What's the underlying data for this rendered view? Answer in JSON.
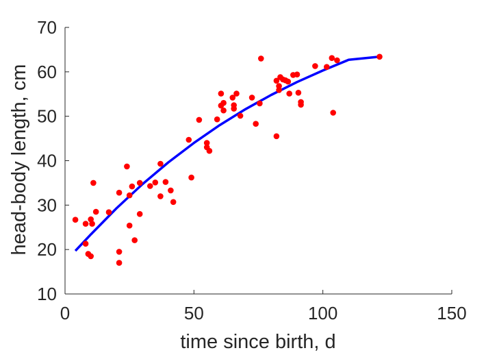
{
  "chart_data": {
    "type": "scatter",
    "xlabel": "time since birth, d",
    "ylabel": "head-body length, cm",
    "xlim": [
      0,
      150
    ],
    "ylim": [
      10,
      70
    ],
    "xticks": [
      0,
      50,
      100,
      150
    ],
    "yticks": [
      10,
      20,
      30,
      40,
      50,
      60,
      70
    ],
    "grid": false,
    "series": [
      {
        "kind": "points",
        "color": "#ff0000",
        "points": [
          [
            4,
            26.7
          ],
          [
            8,
            25.8
          ],
          [
            8,
            21.3
          ],
          [
            9,
            19
          ],
          [
            10,
            18.5
          ],
          [
            10,
            26.8
          ],
          [
            10.5,
            25.8
          ],
          [
            11,
            35
          ],
          [
            12,
            28.5
          ],
          [
            17,
            28.4
          ],
          [
            21,
            32.8
          ],
          [
            21,
            19.5
          ],
          [
            21,
            17
          ],
          [
            24,
            38.7
          ],
          [
            25,
            32.2
          ],
          [
            25,
            25.4
          ],
          [
            26,
            34.2
          ],
          [
            27,
            22.1
          ],
          [
            29,
            35
          ],
          [
            29,
            28
          ],
          [
            33,
            34.3
          ],
          [
            35,
            35.1
          ],
          [
            37,
            39.3
          ],
          [
            37,
            32
          ],
          [
            39,
            35.2
          ],
          [
            41,
            33.3
          ],
          [
            42,
            30.7
          ],
          [
            48,
            44.7
          ],
          [
            49,
            36.2
          ],
          [
            52,
            49.2
          ],
          [
            55,
            44
          ],
          [
            55,
            43
          ],
          [
            56,
            42.2
          ],
          [
            59,
            49.3
          ],
          [
            60.5,
            55.1
          ],
          [
            60.5,
            52.4
          ],
          [
            61.5,
            53
          ],
          [
            61.5,
            51.3
          ],
          [
            65,
            54.2
          ],
          [
            65.5,
            52.5
          ],
          [
            65.5,
            51.7
          ],
          [
            66.5,
            55.1
          ],
          [
            68,
            50.1
          ],
          [
            72.5,
            54.2
          ],
          [
            74,
            48.3
          ],
          [
            75.5,
            52.9
          ],
          [
            76,
            63
          ],
          [
            82,
            58
          ],
          [
            82,
            45.5
          ],
          [
            83,
            56.8
          ],
          [
            83,
            55.9
          ],
          [
            83.5,
            58.8
          ],
          [
            84.5,
            58.3
          ],
          [
            85.5,
            58.1
          ],
          [
            86.5,
            57.8
          ],
          [
            87,
            55.1
          ],
          [
            88.5,
            59.3
          ],
          [
            90,
            59.4
          ],
          [
            90.5,
            55.3
          ],
          [
            91.5,
            53.2
          ],
          [
            91.5,
            52.6
          ],
          [
            97,
            61.3
          ],
          [
            101.5,
            61.1
          ],
          [
            103.5,
            63.1
          ],
          [
            104,
            50.8
          ],
          [
            105.5,
            62.6
          ],
          [
            122,
            63.4
          ]
        ]
      },
      {
        "kind": "fit-line",
        "color": "#0000ff",
        "x": [
          4,
          10,
          20,
          30,
          40,
          50,
          60,
          70,
          80,
          90,
          100,
          110,
          122
        ],
        "y": [
          19.7,
          23.4,
          29.3,
          34.7,
          39.6,
          44,
          48,
          51.6,
          54.8,
          57.7,
          60.3,
          62.7,
          63.4
        ]
      }
    ]
  }
}
